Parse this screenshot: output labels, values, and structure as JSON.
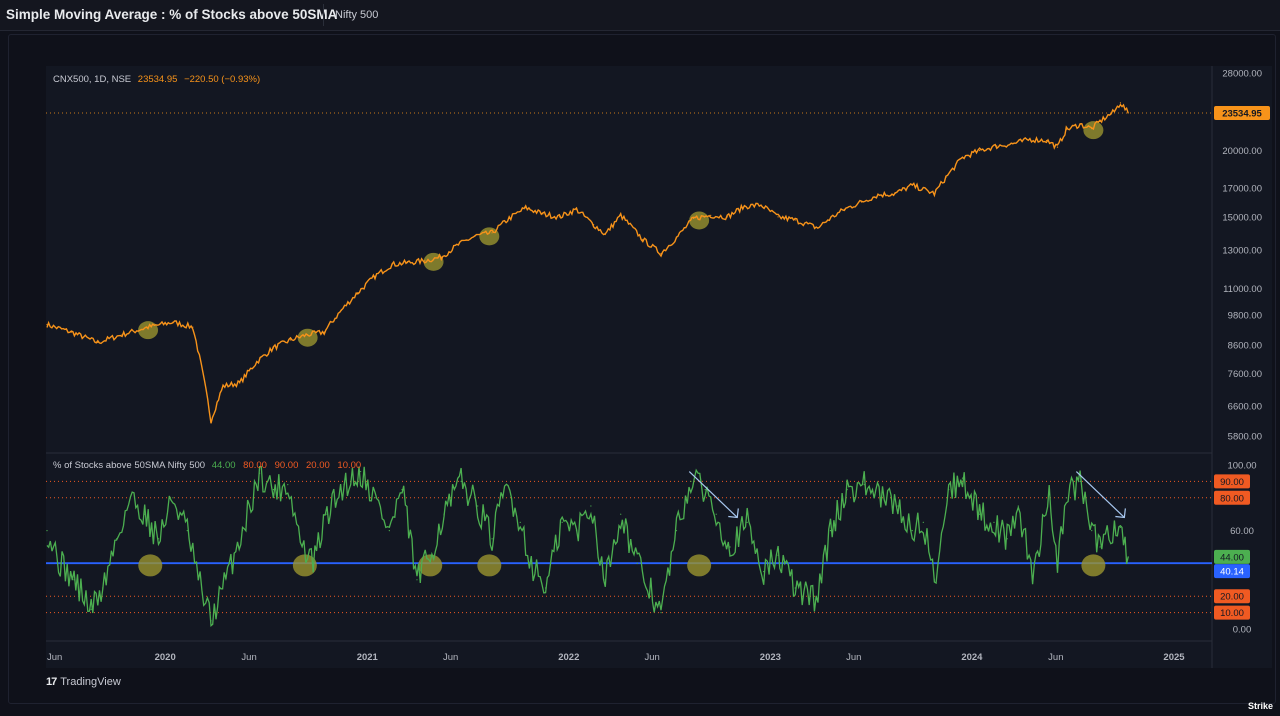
{
  "header": {
    "title": "Simple Moving Average : % of Stocks above 50SMA",
    "index": "Nifty 500"
  },
  "branding": {
    "tradingview": "TradingView",
    "watermark": "Strike"
  },
  "colors": {
    "price": "#f7931a",
    "breadth": "#4caf50",
    "midline": "#2962ff",
    "levels": "#f05a22",
    "highlight": "#9a9430",
    "arrow": "#a8c8f0"
  },
  "chart_data": [
    {
      "type": "line",
      "pane": "price",
      "legend_label": "CNX500, 1D, NSE",
      "last_value": "23534.95",
      "change": "−220.50 (−0.93%)",
      "last_value_tag": "23534.95",
      "y_ticks": [
        "28000.00",
        "20000.00",
        "17000.00",
        "15000.00",
        "13000.00",
        "11000.00",
        "9800.00",
        "8600.00",
        "7600.00",
        "6600.00",
        "5800.00"
      ],
      "y_tick_values": [
        28000,
        20000,
        17000,
        15000,
        13000,
        11000,
        9800,
        8600,
        7600,
        6600,
        5800
      ],
      "scale": "log",
      "x": [
        "2019-06-01",
        "2019-07-15",
        "2019-09-01",
        "2019-10-15",
        "2019-12-01",
        "2020-01-15",
        "2020-02-20",
        "2020-03-24",
        "2020-04-15",
        "2020-05-15",
        "2020-06-15",
        "2020-07-15",
        "2020-08-15",
        "2020-09-15",
        "2020-10-15",
        "2020-11-15",
        "2020-12-15",
        "2021-01-15",
        "2021-02-15",
        "2021-03-15",
        "2021-04-15",
        "2021-05-15",
        "2021-06-15",
        "2021-07-15",
        "2021-08-15",
        "2021-09-15",
        "2021-10-15",
        "2021-11-15",
        "2021-12-15",
        "2022-01-15",
        "2022-02-15",
        "2022-03-08",
        "2022-04-05",
        "2022-05-15",
        "2022-06-17",
        "2022-07-15",
        "2022-08-15",
        "2022-09-15",
        "2022-10-15",
        "2022-11-15",
        "2022-12-15",
        "2023-01-15",
        "2023-02-15",
        "2023-03-28",
        "2023-04-15",
        "2023-05-15",
        "2023-06-15",
        "2023-07-15",
        "2023-08-15",
        "2023-09-15",
        "2023-10-25",
        "2023-11-15",
        "2023-12-15",
        "2024-01-15",
        "2024-02-15",
        "2024-03-15",
        "2024-04-15",
        "2024-05-15",
        "2024-06-04",
        "2024-06-20",
        "2024-07-15",
        "2024-08-05",
        "2024-08-20",
        "2024-09-15",
        "2024-09-26",
        "2024-10-10"
      ],
      "y": [
        9400,
        9100,
        8700,
        9000,
        9300,
        9500,
        9300,
        6200,
        7200,
        7300,
        8000,
        8500,
        8800,
        9000,
        9100,
        10000,
        10800,
        11600,
        12200,
        12300,
        12400,
        12600,
        13300,
        13800,
        14000,
        14900,
        15600,
        15200,
        15000,
        15500,
        14500,
        13900,
        15100,
        13600,
        12800,
        13700,
        14900,
        15100,
        15000,
        15700,
        15800,
        15000,
        14800,
        14300,
        14800,
        15500,
        16000,
        16500,
        16600,
        17200,
        16600,
        17800,
        19400,
        20000,
        20400,
        20600,
        21000,
        20900,
        20300,
        21900,
        22400,
        22000,
        22700,
        23700,
        24600,
        23534.95
      ],
      "highlights": [
        "2019-12-01",
        "2020-09-15",
        "2021-05-01",
        "2021-08-10",
        "2022-08-25",
        "2024-08-08"
      ]
    },
    {
      "type": "line",
      "pane": "breadth",
      "legend_label": "% of Stocks above 50SMA Nifty 500",
      "legend_values": [
        "44.00",
        "80.00",
        "90.00",
        "20.00",
        "10.00"
      ],
      "current": 44,
      "ylim": [
        0,
        100
      ],
      "y_ticks": [
        "100.00",
        "60.00",
        "0.00"
      ],
      "y_tick_values": [
        100,
        60,
        0
      ],
      "levels": [
        {
          "value": 90,
          "label": "90.00"
        },
        {
          "value": 80,
          "label": "80.00"
        },
        {
          "value": 20,
          "label": "20.00"
        },
        {
          "value": 10,
          "label": "10.00"
        }
      ],
      "midline": {
        "value": 40.14,
        "label": "40.14"
      },
      "current_tag": "44.00",
      "x": [
        "2019-06-01",
        "2019-06-25",
        "2019-07-20",
        "2019-08-20",
        "2019-09-10",
        "2019-10-05",
        "2019-10-30",
        "2019-11-25",
        "2019-12-20",
        "2020-01-15",
        "2020-02-10",
        "2020-03-01",
        "2020-03-24",
        "2020-04-20",
        "2020-05-20",
        "2020-06-20",
        "2020-07-15",
        "2020-08-10",
        "2020-09-05",
        "2020-09-25",
        "2020-10-20",
        "2020-11-20",
        "2020-12-20",
        "2021-01-15",
        "2021-02-10",
        "2021-03-05",
        "2021-04-01",
        "2021-04-25",
        "2021-05-20",
        "2021-06-20",
        "2021-07-20",
        "2021-08-15",
        "2021-09-10",
        "2021-10-05",
        "2021-10-25",
        "2021-11-20",
        "2021-12-20",
        "2022-01-15",
        "2022-02-10",
        "2022-03-08",
        "2022-04-05",
        "2022-05-05",
        "2022-06-17",
        "2022-07-15",
        "2022-08-10",
        "2022-09-05",
        "2022-09-25",
        "2022-10-20",
        "2022-11-20",
        "2022-12-20",
        "2023-01-15",
        "2023-02-15",
        "2023-03-25",
        "2023-04-20",
        "2023-05-20",
        "2023-06-20",
        "2023-07-20",
        "2023-08-20",
        "2023-09-15",
        "2023-10-05",
        "2023-10-25",
        "2023-11-20",
        "2023-12-15",
        "2024-01-15",
        "2024-02-10",
        "2024-03-05",
        "2024-03-25",
        "2024-04-20",
        "2024-05-20",
        "2024-06-04",
        "2024-06-20",
        "2024-07-15",
        "2024-08-05",
        "2024-08-20",
        "2024-09-15",
        "2024-09-26",
        "2024-10-10"
      ],
      "y": [
        60,
        40,
        30,
        12,
        25,
        55,
        80,
        70,
        55,
        80,
        60,
        30,
        5,
        30,
        60,
        95,
        85,
        88,
        50,
        40,
        70,
        88,
        96,
        80,
        60,
        85,
        30,
        45,
        70,
        90,
        75,
        55,
        88,
        65,
        40,
        25,
        65,
        60,
        75,
        30,
        70,
        40,
        10,
        60,
        90,
        85,
        70,
        50,
        65,
        35,
        45,
        25,
        18,
        60,
        85,
        88,
        80,
        75,
        60,
        65,
        30,
        85,
        92,
        70,
        65,
        55,
        75,
        30,
        85,
        40,
        80,
        90,
        60,
        50,
        62,
        62,
        44
      ],
      "arrows": [
        "2022-10",
        "2024-09"
      ],
      "highlights": [
        "2019-12-05",
        "2020-09-10",
        "2021-04-25",
        "2021-08-10",
        "2022-08-25",
        "2024-08-08"
      ]
    }
  ],
  "x_axis": {
    "labels": [
      "Jun",
      "2020",
      "Jun",
      "2021",
      "Jun",
      "2022",
      "Jun",
      "2023",
      "Jun",
      "2024",
      "Jun",
      "2025"
    ],
    "dates": [
      "2019-06-01",
      "2020-01-01",
      "2020-06-01",
      "2021-01-01",
      "2021-06-01",
      "2022-01-01",
      "2022-06-01",
      "2023-01-01",
      "2023-06-01",
      "2024-01-01",
      "2024-06-01",
      "2025-01-01"
    ]
  }
}
